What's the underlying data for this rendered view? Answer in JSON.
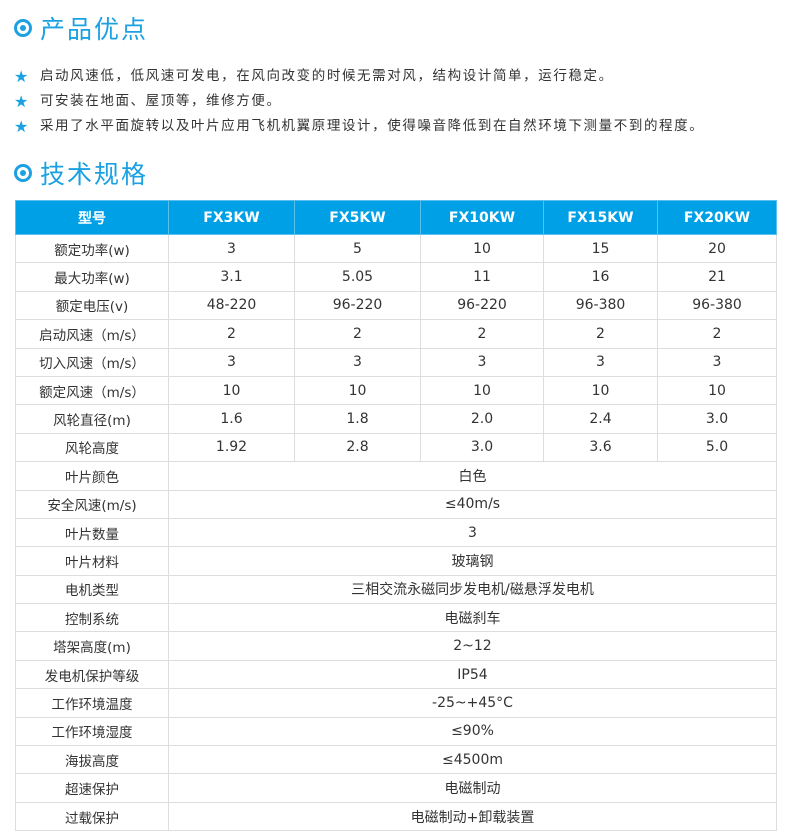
{
  "advantages": {
    "title": "产品优点",
    "items": [
      "启动风速低，低风速可发电，在风向改变的时候无需对风，结构设计简单，运行稳定。",
      "可安装在地面、屋顶等，维修方便。",
      "采用了水平面旋转以及叶片应用飞机机翼原理设计，使得噪音降低到在自然环境下测量不到的程度。"
    ]
  },
  "specs": {
    "title": "技术规格",
    "headers": [
      "型号",
      "FX3KW",
      "FX5KW",
      "FX10KW",
      "FX15KW",
      "FX20KW"
    ],
    "rows": [
      [
        "额定功率(w)",
        "3",
        "5",
        "10",
        "15",
        "20"
      ],
      [
        "最大功率(w)",
        "3.1",
        "5.05",
        "11",
        "16",
        "21"
      ],
      [
        "额定电压(v)",
        "48-220",
        "96-220",
        "96-220",
        "96-380",
        "96-380"
      ],
      [
        "启动风速（m/s）",
        "2",
        "2",
        "2",
        "2",
        "2"
      ],
      [
        "切入风速（m/s）",
        "3",
        "3",
        "3",
        "3",
        "3"
      ],
      [
        "额定风速（m/s）",
        "10",
        "10",
        "10",
        "10",
        "10"
      ],
      [
        "风轮直径(m)",
        "1.6",
        "1.8",
        "2.0",
        "2.4",
        "3.0"
      ],
      [
        "风轮高度",
        "1.92",
        "2.8",
        "3.0",
        "3.6",
        "5.0"
      ]
    ],
    "shared_rows": [
      [
        "叶片颜色",
        "白色"
      ],
      [
        "安全风速(m/s)",
        "≤40m/s"
      ],
      [
        "叶片数量",
        "3"
      ],
      [
        "叶片材料",
        "玻璃钢"
      ],
      [
        "电机类型",
        "三相交流永磁同步发电机/磁悬浮发电机"
      ],
      [
        "控制系统",
        "电磁刹车"
      ],
      [
        "塔架高度(m)",
        "2~12"
      ],
      [
        "发电机保护等级",
        "IP54"
      ],
      [
        "工作环境温度",
        "-25~+45°C"
      ],
      [
        "工作环境湿度",
        "≤90%"
      ],
      [
        "海拔高度",
        "≤4500m"
      ],
      [
        "超速保护",
        "电磁制动"
      ],
      [
        "过载保护",
        "电磁制动+卸载装置"
      ]
    ]
  },
  "colors": {
    "accent": "#1ba1e2",
    "header_bg": "#00a0e6"
  }
}
